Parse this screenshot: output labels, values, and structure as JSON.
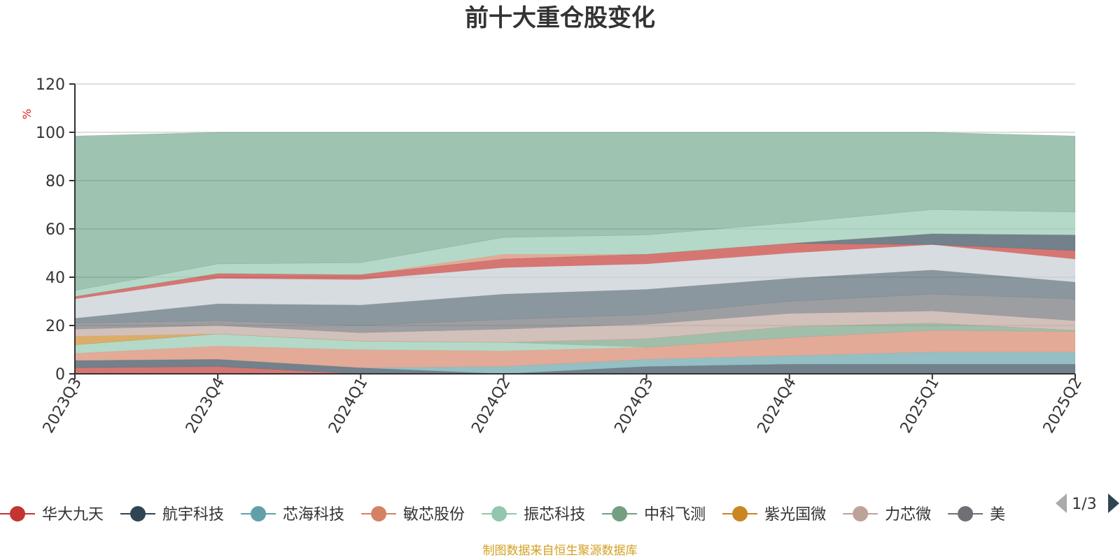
{
  "page_info": {
    "footer_text": "制图数据来自恒生聚源数据库",
    "footer_color": "#d4a020"
  },
  "legend": {
    "page_indicator": "1/3"
  },
  "chart_data": {
    "type": "area",
    "stacked": true,
    "title": "前十大重仓股变化",
    "xlabel": "",
    "ylabel": "%",
    "ylim": [
      0,
      120
    ],
    "yticks": [
      0,
      20,
      40,
      60,
      80,
      100,
      120
    ],
    "grid": true,
    "legend_position": "bottom",
    "categories": [
      "2023Q3",
      "2023Q4",
      "2024Q1",
      "2024Q2",
      "2024Q3",
      "2024Q4",
      "2025Q1",
      "2025Q2"
    ],
    "series": [
      {
        "name": "华大九天",
        "color": "#c23531",
        "values": [
          2.5,
          3.0,
          0.0,
          0.0,
          0.0,
          0.0,
          0.0,
          0.0
        ]
      },
      {
        "name": "航宇科技",
        "color": "#2f4554",
        "values": [
          3.0,
          3.0,
          2.5,
          0.0,
          3.0,
          4.0,
          4.0,
          4.0
        ]
      },
      {
        "name": "芯海科技",
        "color": "#61a0a8",
        "values": [
          0.0,
          0.0,
          0.0,
          3.0,
          3.0,
          3.5,
          5.0,
          5.0
        ]
      },
      {
        "name": "敏芯股份",
        "color": "#d48265",
        "values": [
          3.0,
          5.5,
          7.5,
          6.5,
          5.0,
          7.5,
          9.0,
          8.5
        ]
      },
      {
        "name": "振芯科技",
        "color": "#91c7ae",
        "values": [
          3.5,
          5.0,
          3.5,
          3.5,
          0.0,
          0.0,
          0.0,
          0.0
        ]
      },
      {
        "name": "中科飞测",
        "color": "#749f83",
        "values": [
          0.0,
          0.0,
          0.0,
          0.0,
          3.5,
          4.5,
          3.0,
          0.5
        ]
      },
      {
        "name": "紫光国微",
        "color": "#ca8622",
        "values": [
          3.5,
          0.0,
          0.0,
          0.0,
          0.0,
          0.0,
          0.0,
          0.0
        ]
      },
      {
        "name": "力芯微",
        "color": "#bda29a",
        "values": [
          3.0,
          3.5,
          3.5,
          5.5,
          6.0,
          5.5,
          5.0,
          4.0
        ]
      },
      {
        "name": "美",
        "color": "#6e7074",
        "values": [
          2.5,
          2.0,
          3.0,
          4.0,
          4.0,
          5.0,
          7.0,
          9.0
        ]
      },
      {
        "name": "",
        "color": "#546570",
        "values": [
          2.0,
          7.0,
          8.5,
          10.5,
          10.5,
          9.5,
          10.0,
          7.0
        ]
      },
      {
        "name": "",
        "color": "#c4ccd3",
        "values": [
          8.0,
          10.5,
          10.5,
          11.0,
          10.5,
          10.5,
          10.5,
          9.5
        ]
      },
      {
        "name": "",
        "color": "#c23531",
        "values": [
          1.0,
          2.0,
          2.0,
          3.5,
          4.0,
          4.0,
          0.0,
          3.5
        ]
      },
      {
        "name": "",
        "color": "#2f4554",
        "values": [
          0.0,
          0.0,
          0.0,
          0.0,
          0.0,
          0.0,
          4.5,
          6.5
        ]
      },
      {
        "name": "",
        "color": "#d48265",
        "values": [
          0.0,
          0.0,
          0.0,
          2.0,
          0.0,
          0.0,
          0.0,
          0.0
        ]
      },
      {
        "name": "",
        "color": "#91c7ae",
        "values": [
          2.5,
          4.0,
          5.0,
          7.0,
          8.0,
          8.5,
          10.0,
          9.5
        ]
      },
      {
        "name": "",
        "color": "#2e7d55",
        "values": [
          64.0,
          54.5,
          54.0,
          43.5,
          42.5,
          37.5,
          32.0,
          31.5
        ]
      }
    ]
  }
}
